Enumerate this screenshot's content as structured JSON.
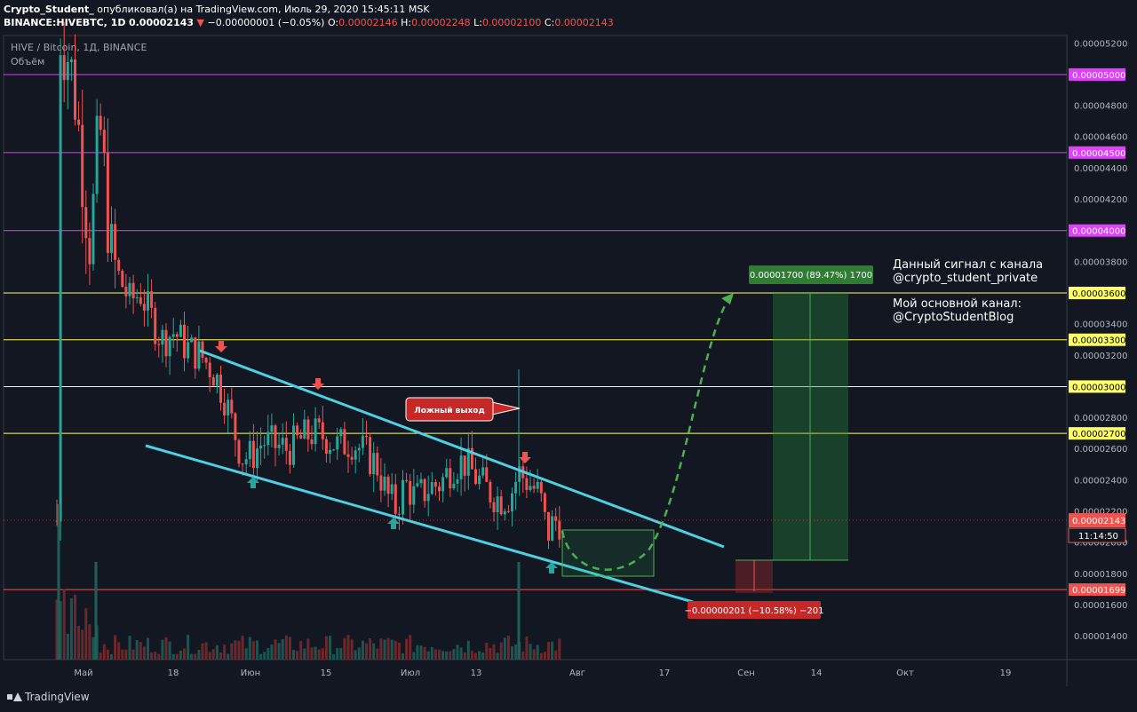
{
  "header": {
    "author": "Crypto_Student_",
    "published": "опубликовал(а) на TradingView.com, Июль 29, 2020 15:45:11 MSK",
    "symbol": "BINANCE:HIVEBTC, 1D",
    "last": "0.00002143",
    "change": "−0.00000001 (−0.05%)",
    "o_label": "O:",
    "o": "0.00002146",
    "h_label": "H:",
    "h": "0.00002248",
    "l_label": "L:",
    "l": "0.00002100",
    "c_label": "C:",
    "c": "0.00002143"
  },
  "legend": {
    "title": "HIVE / Bitcoin, 1Д, BINANCE",
    "volume": "Объём"
  },
  "notes": {
    "signal_line1": "Данный сигнал с канала",
    "signal_line2": "@crypto_student_private",
    "main_line1": "Мой основной канал:",
    "main_line2": "@CryptoStudentBlog"
  },
  "footer": {
    "brand": "TradingView"
  },
  "colors": {
    "bg": "#131722",
    "up": "#26a69a",
    "down": "#ef5350",
    "channel": "#4dd0e1",
    "magenta": "#e040fb",
    "yellow": "#ffff66",
    "red_line": "#ef5350"
  },
  "chart_data": {
    "type": "candlestick",
    "y_scale_min": 1.25e-05,
    "y_scale_max": 5.25e-05,
    "y_ticks": [
      "0.00005200",
      "0.00004800",
      "0.00004600",
      "0.00004400",
      "0.00004200",
      "0.00003800",
      "0.00003400",
      "0.00003200",
      "0.00002800",
      "0.00002600",
      "0.00002400",
      "0.00002200",
      "0.00002000",
      "0.00001800",
      "0.00001600",
      "0.00001400"
    ],
    "x_ticks": [
      "Май",
      "18",
      "Июн",
      "15",
      "Июл",
      "13",
      "Авг",
      "17",
      "Сен",
      "14",
      "Окт",
      "19"
    ],
    "level_lines": [
      {
        "value": "0.00005000",
        "color": "magenta"
      },
      {
        "value": "0.00004500",
        "color": "magenta"
      },
      {
        "value": "0.00004000",
        "color": "magenta"
      },
      {
        "value": "0.00003600",
        "color": "yellow"
      },
      {
        "value": "0.00003300",
        "color": "yellow"
      },
      {
        "value": "0.00003000",
        "color": "yellow"
      },
      {
        "value": "0.00002700",
        "color": "yellow"
      },
      {
        "value": "0.00001699",
        "color": "red"
      }
    ],
    "price_label": "0.00002143",
    "countdown_label": "11:14:50",
    "annotations": {
      "false_breakout": "Ложный выход",
      "target": "0.00001700 (89.47%) 1700",
      "stop": "−0.00000201 (−10.58%) −201"
    }
  }
}
